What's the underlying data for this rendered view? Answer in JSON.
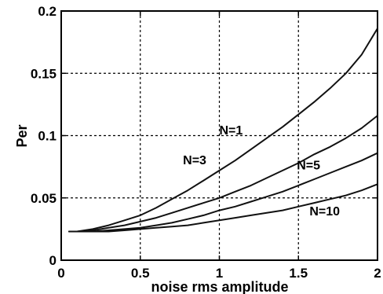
{
  "chart_data": {
    "type": "line",
    "title": "",
    "xlabel": "noise rms amplitude",
    "ylabel": "Per",
    "xlim": [
      0,
      2
    ],
    "ylim": [
      0,
      0.2
    ],
    "xticks": [
      0,
      0.5,
      1,
      1.5,
      2
    ],
    "yticks": [
      0,
      0.05,
      0.1,
      0.15,
      0.2
    ],
    "xtick_labels": [
      "0",
      "0.5",
      "1",
      "1.5",
      "2"
    ],
    "ytick_labels": [
      "0",
      "0.05",
      "0.1",
      "0.15",
      "0.2"
    ],
    "grid": true,
    "x": [
      0.05,
      0.1,
      0.2,
      0.3,
      0.4,
      0.5,
      0.6,
      0.7,
      0.8,
      0.9,
      1.0,
      1.1,
      1.2,
      1.3,
      1.4,
      1.5,
      1.6,
      1.7,
      1.8,
      1.9,
      2.0
    ],
    "series": [
      {
        "name": "N=1",
        "values": [
          0.023,
          0.023,
          0.025,
          0.028,
          0.032,
          0.036,
          0.042,
          0.049,
          0.056,
          0.064,
          0.072,
          0.08,
          0.089,
          0.098,
          0.107,
          0.117,
          0.127,
          0.138,
          0.15,
          0.165,
          0.186
        ]
      },
      {
        "name": "N=3",
        "values": [
          0.023,
          0.023,
          0.024,
          0.026,
          0.028,
          0.031,
          0.034,
          0.038,
          0.042,
          0.046,
          0.05,
          0.055,
          0.06,
          0.066,
          0.072,
          0.078,
          0.085,
          0.091,
          0.098,
          0.106,
          0.116
        ]
      },
      {
        "name": "N=5",
        "values": [
          0.023,
          0.023,
          0.023,
          0.024,
          0.025,
          0.026,
          0.028,
          0.03,
          0.033,
          0.036,
          0.04,
          0.043,
          0.047,
          0.051,
          0.055,
          0.06,
          0.065,
          0.07,
          0.075,
          0.08,
          0.086
        ]
      },
      {
        "name": "N=10",
        "values": [
          0.023,
          0.023,
          0.023,
          0.023,
          0.024,
          0.025,
          0.026,
          0.027,
          0.028,
          0.03,
          0.032,
          0.034,
          0.036,
          0.038,
          0.04,
          0.043,
          0.046,
          0.049,
          0.052,
          0.056,
          0.061
        ]
      }
    ]
  }
}
